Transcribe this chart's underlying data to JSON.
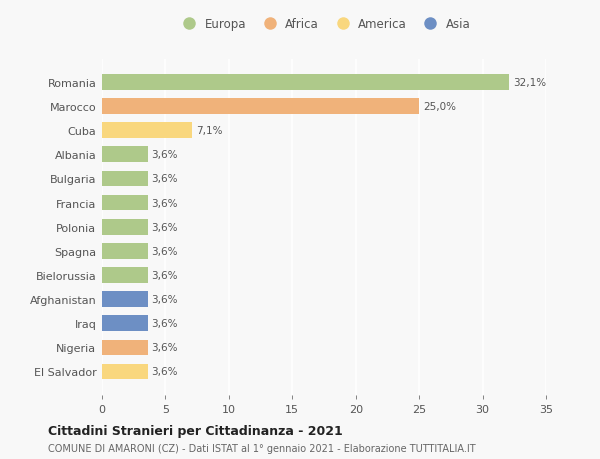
{
  "categories": [
    "Romania",
    "Marocco",
    "Cuba",
    "Albania",
    "Bulgaria",
    "Francia",
    "Polonia",
    "Spagna",
    "Bielorussia",
    "Afghanistan",
    "Iraq",
    "Nigeria",
    "El Salvador"
  ],
  "values": [
    32.1,
    25.0,
    7.1,
    3.6,
    3.6,
    3.6,
    3.6,
    3.6,
    3.6,
    3.6,
    3.6,
    3.6,
    3.6
  ],
  "labels": [
    "32,1%",
    "25,0%",
    "7,1%",
    "3,6%",
    "3,6%",
    "3,6%",
    "3,6%",
    "3,6%",
    "3,6%",
    "3,6%",
    "3,6%",
    "3,6%",
    "3,6%"
  ],
  "colors": [
    "#aec98a",
    "#f0b27a",
    "#f9d77e",
    "#aec98a",
    "#aec98a",
    "#aec98a",
    "#aec98a",
    "#aec98a",
    "#aec98a",
    "#6d8fc4",
    "#6d8fc4",
    "#f0b27a",
    "#f9d77e"
  ],
  "legend_labels": [
    "Europa",
    "Africa",
    "America",
    "Asia"
  ],
  "legend_colors": [
    "#aec98a",
    "#f0b27a",
    "#f9d77e",
    "#6d8fc4"
  ],
  "title": "Cittadini Stranieri per Cittadinanza - 2021",
  "subtitle": "COMUNE DI AMARONI (CZ) - Dati ISTAT al 1° gennaio 2021 - Elaborazione TUTTITALIA.IT",
  "xlim": [
    0,
    35
  ],
  "xticks": [
    0,
    5,
    10,
    15,
    20,
    25,
    30,
    35
  ],
  "background_color": "#f8f8f8",
  "grid_color": "#ffffff",
  "bar_height": 0.65
}
